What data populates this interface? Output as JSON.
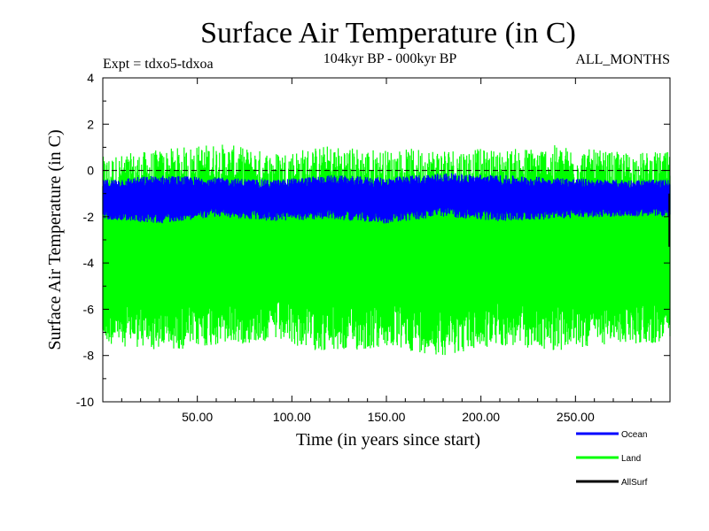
{
  "chart_data": {
    "type": "line",
    "title": "Surface Air Temperature (in C)",
    "subtitle": "104kyr BP - 000kyr BP",
    "experiment_label": "Expt = tdxo5-tdxoa",
    "period_label": "ALL_MONTHS",
    "xlabel": "Time (in years since start)",
    "ylabel": "Surface Air Temperature (in C)",
    "xlim": [
      0,
      300
    ],
    "ylim": [
      -10,
      4
    ],
    "x_ticks": [
      50,
      100,
      150,
      200,
      250
    ],
    "x_tick_labels": [
      "50.00",
      "100.00",
      "150.00",
      "200.00",
      "250.00"
    ],
    "y_ticks": [
      -10,
      -8,
      -6,
      -4,
      -2,
      0,
      2,
      4
    ],
    "y_tick_labels": [
      "-10",
      "-8",
      "-6",
      "-4",
      "-2",
      "0",
      "2",
      "4"
    ],
    "reference_line": {
      "y": 0,
      "style": "dashed"
    },
    "grid": false,
    "legend_position": "bottom-right",
    "series": [
      {
        "name": "Land",
        "color": "#00ff00",
        "x_start": 0,
        "x_step": 1,
        "envelope_min": [
          -7.5,
          -7.8,
          -7.6,
          -7.4,
          -7.9,
          -7.7,
          -8.0,
          -7.6,
          -7.8,
          -7.5
        ],
        "envelope_max": [
          0.6,
          0.9,
          1.2,
          0.8,
          1.1,
          0.9,
          1.0,
          0.9,
          1.1,
          0.8
        ],
        "envelope_step_years": 30,
        "values": [
          -4.2,
          -4.6,
          -3.9,
          -4.8,
          -4.1,
          -4.4,
          -3.7,
          -4.9,
          -4.3,
          -4.0,
          -4.5,
          -4.2
        ]
      },
      {
        "name": "Ocean",
        "color": "#0000ff",
        "x_start": 0,
        "x_step": 1,
        "envelope_min": [
          -2.1,
          -2.3,
          -2.0,
          -2.2,
          -2.1,
          -2.3,
          -2.0,
          -2.2,
          -2.1,
          -2.0
        ],
        "envelope_max": [
          -0.4,
          -0.2,
          -0.3,
          -0.4,
          -0.2,
          -0.3,
          -0.1,
          -0.2,
          -0.3,
          -0.4
        ],
        "envelope_step_years": 30,
        "values": [
          -1.2,
          -1.3,
          -1.1,
          -1.25,
          -1.15,
          -1.3,
          -1.0,
          -1.2,
          -1.1,
          -1.25,
          -1.15,
          -1.2
        ]
      },
      {
        "name": "AllSurf",
        "color": "#000000",
        "values": [
          -2.0
        ]
      }
    ]
  }
}
